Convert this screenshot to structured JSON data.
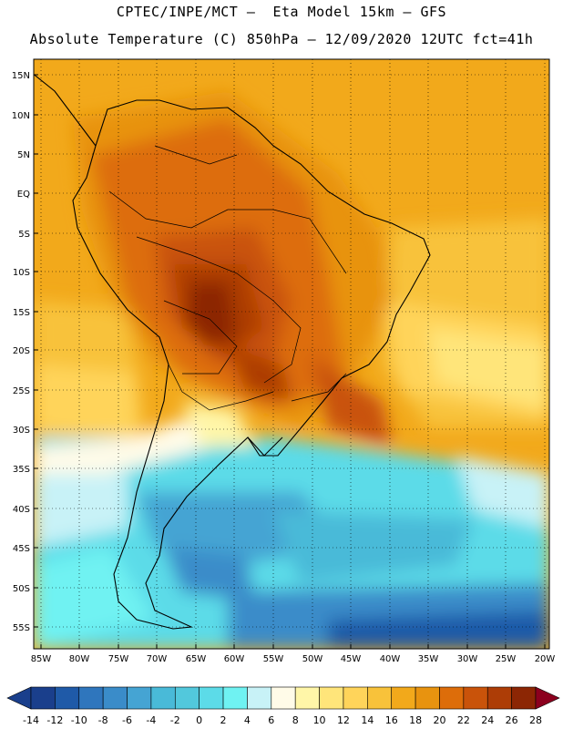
{
  "header": {
    "line1": "CPTEC/INPE/MCT –  Eta Model 15km – GFS",
    "line2": "Absolute Temperature (C) 850hPa – 12/09/2020 12UTC fct=41h"
  },
  "axes": {
    "lat_labels": [
      "15N",
      "10N",
      "5N",
      "EQ",
      "5S",
      "10S",
      "15S",
      "20S",
      "25S",
      "30S",
      "35S",
      "40S",
      "45S",
      "50S",
      "55S"
    ],
    "lon_labels": [
      "85W",
      "80W",
      "75W",
      "70W",
      "65W",
      "60W",
      "55W",
      "50W",
      "45W",
      "40W",
      "35W",
      "30W",
      "25W",
      "20W"
    ]
  },
  "colorbar": {
    "labels": [
      "-14",
      "-12",
      "-10",
      "-8",
      "-6",
      "-4",
      "-2",
      "0",
      "2",
      "4",
      "6",
      "8",
      "10",
      "12",
      "14",
      "16",
      "18",
      "20",
      "22",
      "24",
      "26",
      "28"
    ],
    "colors": [
      "#1a3f8c",
      "#1f5aa8",
      "#2f76bd",
      "#3a8cc9",
      "#45a4d3",
      "#49bad8",
      "#52c8dc",
      "#5cdbe8",
      "#6ff2f2",
      "#c8f2f7",
      "#fffbe8",
      "#fff6a8",
      "#ffe57a",
      "#ffd45a",
      "#f8c23a",
      "#f2a91b",
      "#e8930f",
      "#dd6d0a",
      "#c9530a",
      "#ad3d06",
      "#8c2604",
      "#6e1802",
      "#8c001e"
    ]
  }
}
